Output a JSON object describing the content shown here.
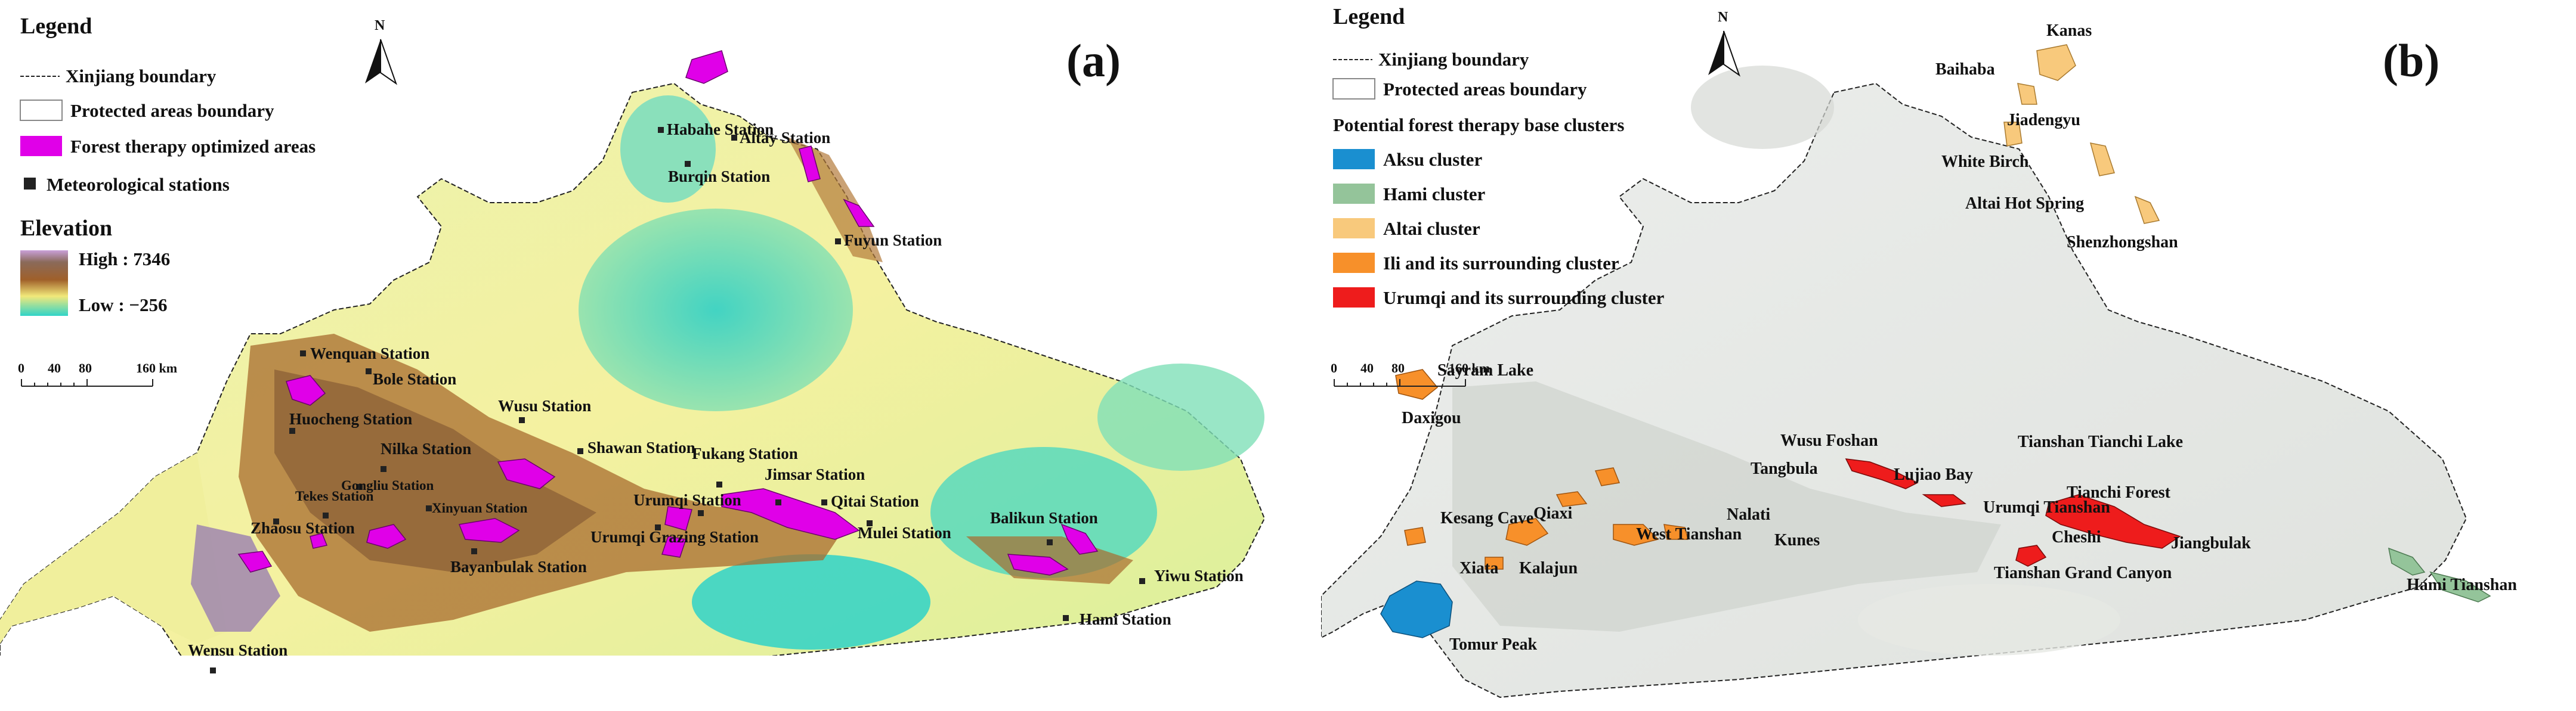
{
  "panel_a": {
    "label": "(a)",
    "legend": {
      "title": "Legend",
      "items": [
        {
          "symbol": "xinjiang-boundary-line",
          "label": "Xinjiang boundary"
        },
        {
          "symbol": "protected-area-box",
          "label": "Protected areas boundary"
        },
        {
          "symbol": "forest-therapy-patch",
          "label": "Forest therapy optimized areas",
          "color": "#e000e8"
        },
        {
          "symbol": "meteorological-station-marker",
          "label": "Meteorological stations"
        }
      ],
      "elevation": {
        "title": "Elevation",
        "high_label": "High : 7346",
        "low_label": "Low : −256"
      },
      "scale": {
        "ticks": [
          "0",
          "40",
          "80",
          "160 km"
        ]
      }
    },
    "north": "N",
    "stations": [
      "Habahe Station",
      "Altay Station",
      "Burqin Station",
      "Fuyun Station",
      "Wenquan Station",
      "Bole Station",
      "Wusu Station",
      "Huocheng Station",
      "Nilka Station",
      "Gongliu Station",
      "Shawan Station",
      "Fukang Station",
      "Jimsar Station",
      "Qitai Station",
      "Xinyuan Station",
      "Tekes Station",
      "Zhaosu Station",
      "Urumqi Station",
      "Mulei Station",
      "Balikun Station",
      "Bayanbulak Station",
      "Urumqi Grazing Station",
      "Yiwu Station",
      "Hami Station",
      "Wensu Station"
    ]
  },
  "panel_b": {
    "label": "(b)",
    "legend": {
      "title": "Legend",
      "items": [
        {
          "symbol": "xinjiang-boundary-line",
          "label": "Xinjiang boundary"
        },
        {
          "symbol": "protected-area-box",
          "label": "Protected areas boundary"
        }
      ],
      "clusters_title": "Potential forest therapy base clusters",
      "clusters": [
        {
          "label": "Aksu cluster",
          "color": "#1a8fd0"
        },
        {
          "label": "Hami cluster",
          "color": "#94c49a"
        },
        {
          "label": "Altai cluster",
          "color": "#f8c97c"
        },
        {
          "label": "Ili and its surrounding cluster",
          "color": "#f7902a"
        },
        {
          "label": "Urumqi and its surrounding cluster",
          "color": "#ee1c1c"
        }
      ],
      "scale": {
        "ticks": [
          "0",
          "40",
          "80",
          "160 km"
        ]
      }
    },
    "north": "N",
    "sites": [
      "Kanas",
      "Baihaba",
      "Jiadengyu",
      "White Birch",
      "Altai Hot Spring",
      "Shenzhongshan",
      "Sayram Lake",
      "Daxigou",
      "Wusu Foshan",
      "Tangbula",
      "Lujiao Bay",
      "Tianshan Tianchi Lake",
      "Tianchi Forest",
      "Urumqi Tianshan",
      "Nalati",
      "Kesang Cave",
      "Qiaxi",
      "West Tianshan",
      "Kunes",
      "Cheshi",
      "Jiangbulak",
      "Tianshan Grand Canyon",
      "Xiata",
      "Kalajun",
      "Tomur Peak",
      "Hami Tianshan"
    ]
  }
}
